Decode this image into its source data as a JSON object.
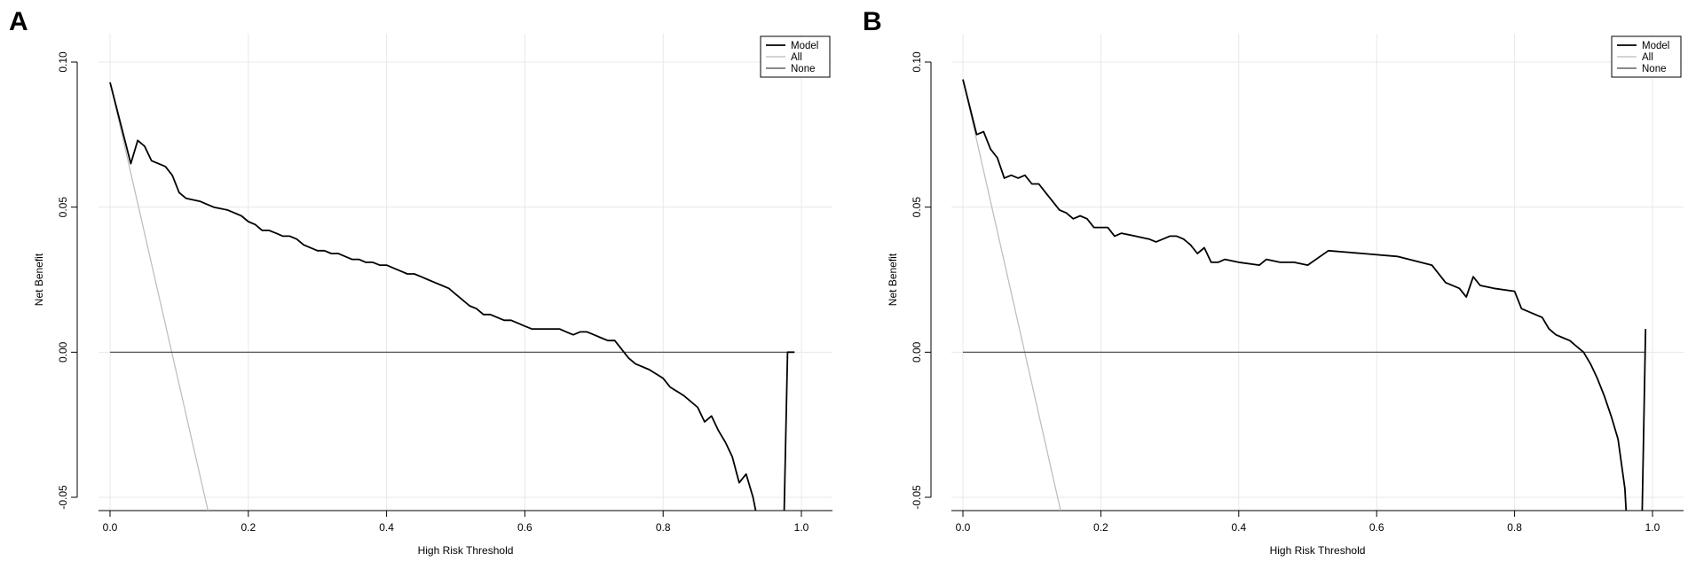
{
  "chart_data": [
    {
      "type": "line",
      "panel_label": "A",
      "xlabel": "High Risk Threshold",
      "ylabel": "Net Benefit",
      "xlim": [
        0.0,
        1.0
      ],
      "ylim": [
        -0.05,
        0.1
      ],
      "x_ticks": [
        "0.0",
        "0.2",
        "0.4",
        "0.6",
        "0.8",
        "1.0"
      ],
      "y_ticks": [
        "-0.05",
        "0.00",
        "0.05",
        "0.10"
      ],
      "grid": true,
      "legend_position": "top-right",
      "series": [
        {
          "name": "Model",
          "color": "#000000",
          "x": [
            0.0,
            0.03,
            0.04,
            0.05,
            0.06,
            0.08,
            0.09,
            0.1,
            0.11,
            0.13,
            0.14,
            0.15,
            0.17,
            0.18,
            0.19,
            0.2,
            0.21,
            0.22,
            0.23,
            0.24,
            0.25,
            0.26,
            0.27,
            0.28,
            0.3,
            0.31,
            0.32,
            0.33,
            0.34,
            0.35,
            0.36,
            0.37,
            0.38,
            0.39,
            0.4,
            0.41,
            0.42,
            0.43,
            0.44,
            0.45,
            0.46,
            0.47,
            0.48,
            0.49,
            0.5,
            0.51,
            0.52,
            0.53,
            0.54,
            0.55,
            0.56,
            0.57,
            0.58,
            0.59,
            0.6,
            0.61,
            0.62,
            0.63,
            0.64,
            0.65,
            0.66,
            0.67,
            0.68,
            0.69,
            0.7,
            0.71,
            0.72,
            0.73,
            0.74,
            0.75,
            0.76,
            0.78,
            0.8,
            0.81,
            0.83,
            0.85,
            0.86,
            0.87,
            0.88,
            0.89,
            0.9,
            0.91,
            0.92,
            0.93,
            0.935,
            0.975,
            0.98,
            0.99
          ],
          "y": [
            0.093,
            0.065,
            0.073,
            0.071,
            0.066,
            0.064,
            0.061,
            0.055,
            0.053,
            0.052,
            0.051,
            0.05,
            0.049,
            0.048,
            0.047,
            0.045,
            0.044,
            0.042,
            0.042,
            0.041,
            0.04,
            0.04,
            0.039,
            0.037,
            0.035,
            0.035,
            0.034,
            0.034,
            0.033,
            0.032,
            0.032,
            0.031,
            0.031,
            0.03,
            0.03,
            0.029,
            0.028,
            0.027,
            0.027,
            0.026,
            0.025,
            0.024,
            0.023,
            0.022,
            0.02,
            0.018,
            0.016,
            0.015,
            0.013,
            0.013,
            0.012,
            0.011,
            0.011,
            0.01,
            0.009,
            0.008,
            0.008,
            0.008,
            0.008,
            0.008,
            0.007,
            0.006,
            0.007,
            0.007,
            0.006,
            0.005,
            0.004,
            0.004,
            0.001,
            -0.002,
            -0.004,
            -0.006,
            -0.009,
            -0.012,
            -0.015,
            -0.019,
            -0.024,
            -0.022,
            -0.027,
            -0.031,
            -0.036,
            -0.045,
            -0.042,
            -0.05,
            -0.056,
            -0.056,
            0.0,
            0.0
          ]
        },
        {
          "name": "All",
          "color": "#bbbbbb",
          "x": [
            0.0,
            0.143
          ],
          "y": [
            0.093,
            -0.056
          ]
        },
        {
          "name": "None",
          "color": "#444444",
          "x": [
            0.0,
            0.99
          ],
          "y": [
            0.0,
            0.0
          ]
        }
      ]
    },
    {
      "type": "line",
      "panel_label": "B",
      "xlabel": "High Risk Threshold",
      "ylabel": "Net Benefit",
      "xlim": [
        0.0,
        1.0
      ],
      "ylim": [
        -0.05,
        0.1
      ],
      "x_ticks": [
        "0.0",
        "0.2",
        "0.4",
        "0.6",
        "0.8",
        "1.0"
      ],
      "y_ticks": [
        "-0.05",
        "0.00",
        "0.05",
        "0.10"
      ],
      "grid": true,
      "legend_position": "top-right",
      "series": [
        {
          "name": "Model",
          "color": "#000000",
          "x": [
            0.0,
            0.02,
            0.03,
            0.04,
            0.05,
            0.06,
            0.07,
            0.08,
            0.09,
            0.1,
            0.11,
            0.12,
            0.13,
            0.14,
            0.15,
            0.16,
            0.17,
            0.18,
            0.19,
            0.2,
            0.21,
            0.22,
            0.23,
            0.25,
            0.27,
            0.28,
            0.29,
            0.3,
            0.31,
            0.32,
            0.33,
            0.34,
            0.35,
            0.36,
            0.37,
            0.38,
            0.4,
            0.43,
            0.44,
            0.46,
            0.48,
            0.5,
            0.53,
            0.58,
            0.63,
            0.68,
            0.7,
            0.72,
            0.73,
            0.74,
            0.75,
            0.77,
            0.8,
            0.81,
            0.83,
            0.84,
            0.85,
            0.86,
            0.87,
            0.88,
            0.89,
            0.9,
            0.91,
            0.92,
            0.93,
            0.94,
            0.95,
            0.96,
            0.962,
            0.985,
            0.99
          ],
          "y": [
            0.094,
            0.075,
            0.076,
            0.07,
            0.067,
            0.06,
            0.061,
            0.06,
            0.061,
            0.058,
            0.058,
            0.055,
            0.052,
            0.049,
            0.048,
            0.046,
            0.047,
            0.046,
            0.043,
            0.043,
            0.043,
            0.04,
            0.041,
            0.04,
            0.039,
            0.038,
            0.039,
            0.04,
            0.04,
            0.039,
            0.037,
            0.034,
            0.036,
            0.031,
            0.031,
            0.032,
            0.031,
            0.03,
            0.032,
            0.031,
            0.031,
            0.03,
            0.035,
            0.034,
            0.033,
            0.03,
            0.024,
            0.022,
            0.019,
            0.026,
            0.023,
            0.022,
            0.021,
            0.015,
            0.013,
            0.012,
            0.008,
            0.006,
            0.005,
            0.004,
            0.002,
            0.0,
            -0.004,
            -0.009,
            -0.015,
            -0.022,
            -0.03,
            -0.047,
            -0.056,
            -0.056,
            0.008
          ]
        },
        {
          "name": "All",
          "color": "#bbbbbb",
          "x": [
            0.0,
            0.143
          ],
          "y": [
            0.094,
            -0.056
          ]
        },
        {
          "name": "None",
          "color": "#444444",
          "x": [
            0.0,
            0.99
          ],
          "y": [
            0.0,
            0.0
          ]
        }
      ]
    }
  ]
}
